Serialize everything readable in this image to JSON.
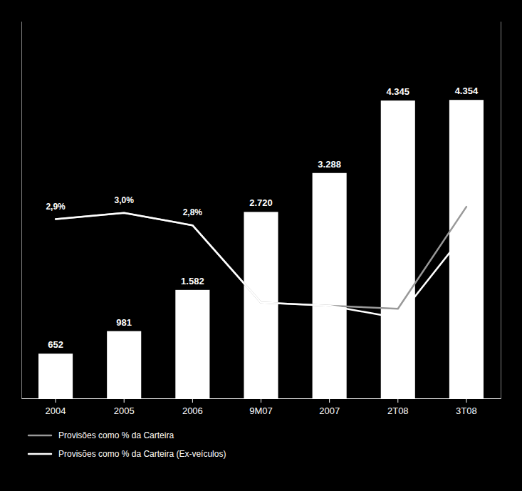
{
  "chart_data": {
    "type": "bar",
    "categories": [
      "2004",
      "2005",
      "2006",
      "9M07",
      "2007",
      "2T08",
      "3T08"
    ],
    "series": [
      {
        "type": "bar",
        "color": "#ffffff",
        "data_labels": true,
        "values": [
          652,
          981,
          1582,
          2720,
          3288,
          4345,
          4354
        ],
        "value_labels": [
          "652",
          "981",
          "1.582",
          "2.720",
          "3.288",
          "4.345",
          "4.354"
        ]
      },
      {
        "name": "Provisões como % da Carteira",
        "type": "line",
        "axis": "y2",
        "color": "#999999",
        "values": [
          2.9,
          3.0,
          2.8,
          1.55,
          1.5,
          1.45,
          3.1
        ]
      },
      {
        "name": "Provisões como % da Carteira (Ex-veículos)",
        "type": "line",
        "axis": "y2",
        "color": "#ffffff",
        "values": [
          2.9,
          3.0,
          2.8,
          1.55,
          1.5,
          1.3,
          2.7
        ]
      }
    ],
    "ylim": [
      0,
      5500
    ],
    "y2lim": [
      0,
      6.1
    ],
    "tick_labels": "x",
    "legend": "lower left",
    "annotations": [
      {
        "text": "2,9%",
        "x": "2004",
        "y": 2.9
      },
      {
        "text": "3,0%",
        "x": "2005",
        "y": 3.0
      },
      {
        "text": "2,8%",
        "x": "2006",
        "y": 2.8
      }
    ]
  }
}
